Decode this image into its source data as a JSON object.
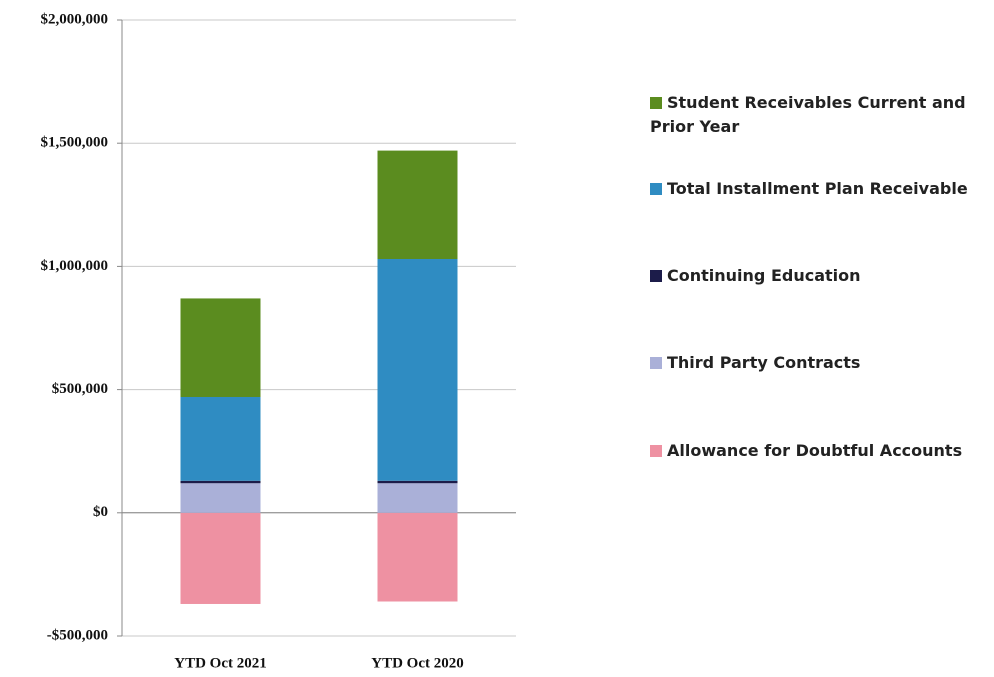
{
  "chart_data": {
    "type": "stacked-bar",
    "categories": [
      "YTD Oct 2021",
      "YTD Oct 2020"
    ],
    "series": [
      {
        "name": "Student Receivables Current and Prior Year",
        "color": "#5b8c1f",
        "values": [
          400000,
          440000
        ]
      },
      {
        "name": "Total Installment Plan Receivable",
        "color": "#2f8cc2",
        "values": [
          340000,
          900000
        ]
      },
      {
        "name": "Continuing Education",
        "color": "#1c1c4a",
        "values": [
          10000,
          10000
        ]
      },
      {
        "name": "Third Party Contracts",
        "color": "#aab0d8",
        "values": [
          120000,
          120000
        ]
      },
      {
        "name": "Allowance for Doubtful Accounts",
        "color": "#ee91a2",
        "values": [
          -370000,
          -360000
        ]
      }
    ],
    "ylim": [
      -500000,
      2000000
    ],
    "yticks": [
      {
        "value": -500000,
        "label": "-$500,000"
      },
      {
        "value": 0,
        "label": "$0"
      },
      {
        "value": 500000,
        "label": "$500,000"
      },
      {
        "value": 1000000,
        "label": "$1,000,000"
      },
      {
        "value": 1500000,
        "label": "$1,500,000"
      },
      {
        "value": 2000000,
        "label": "$2,000,000"
      }
    ],
    "grid": true
  }
}
